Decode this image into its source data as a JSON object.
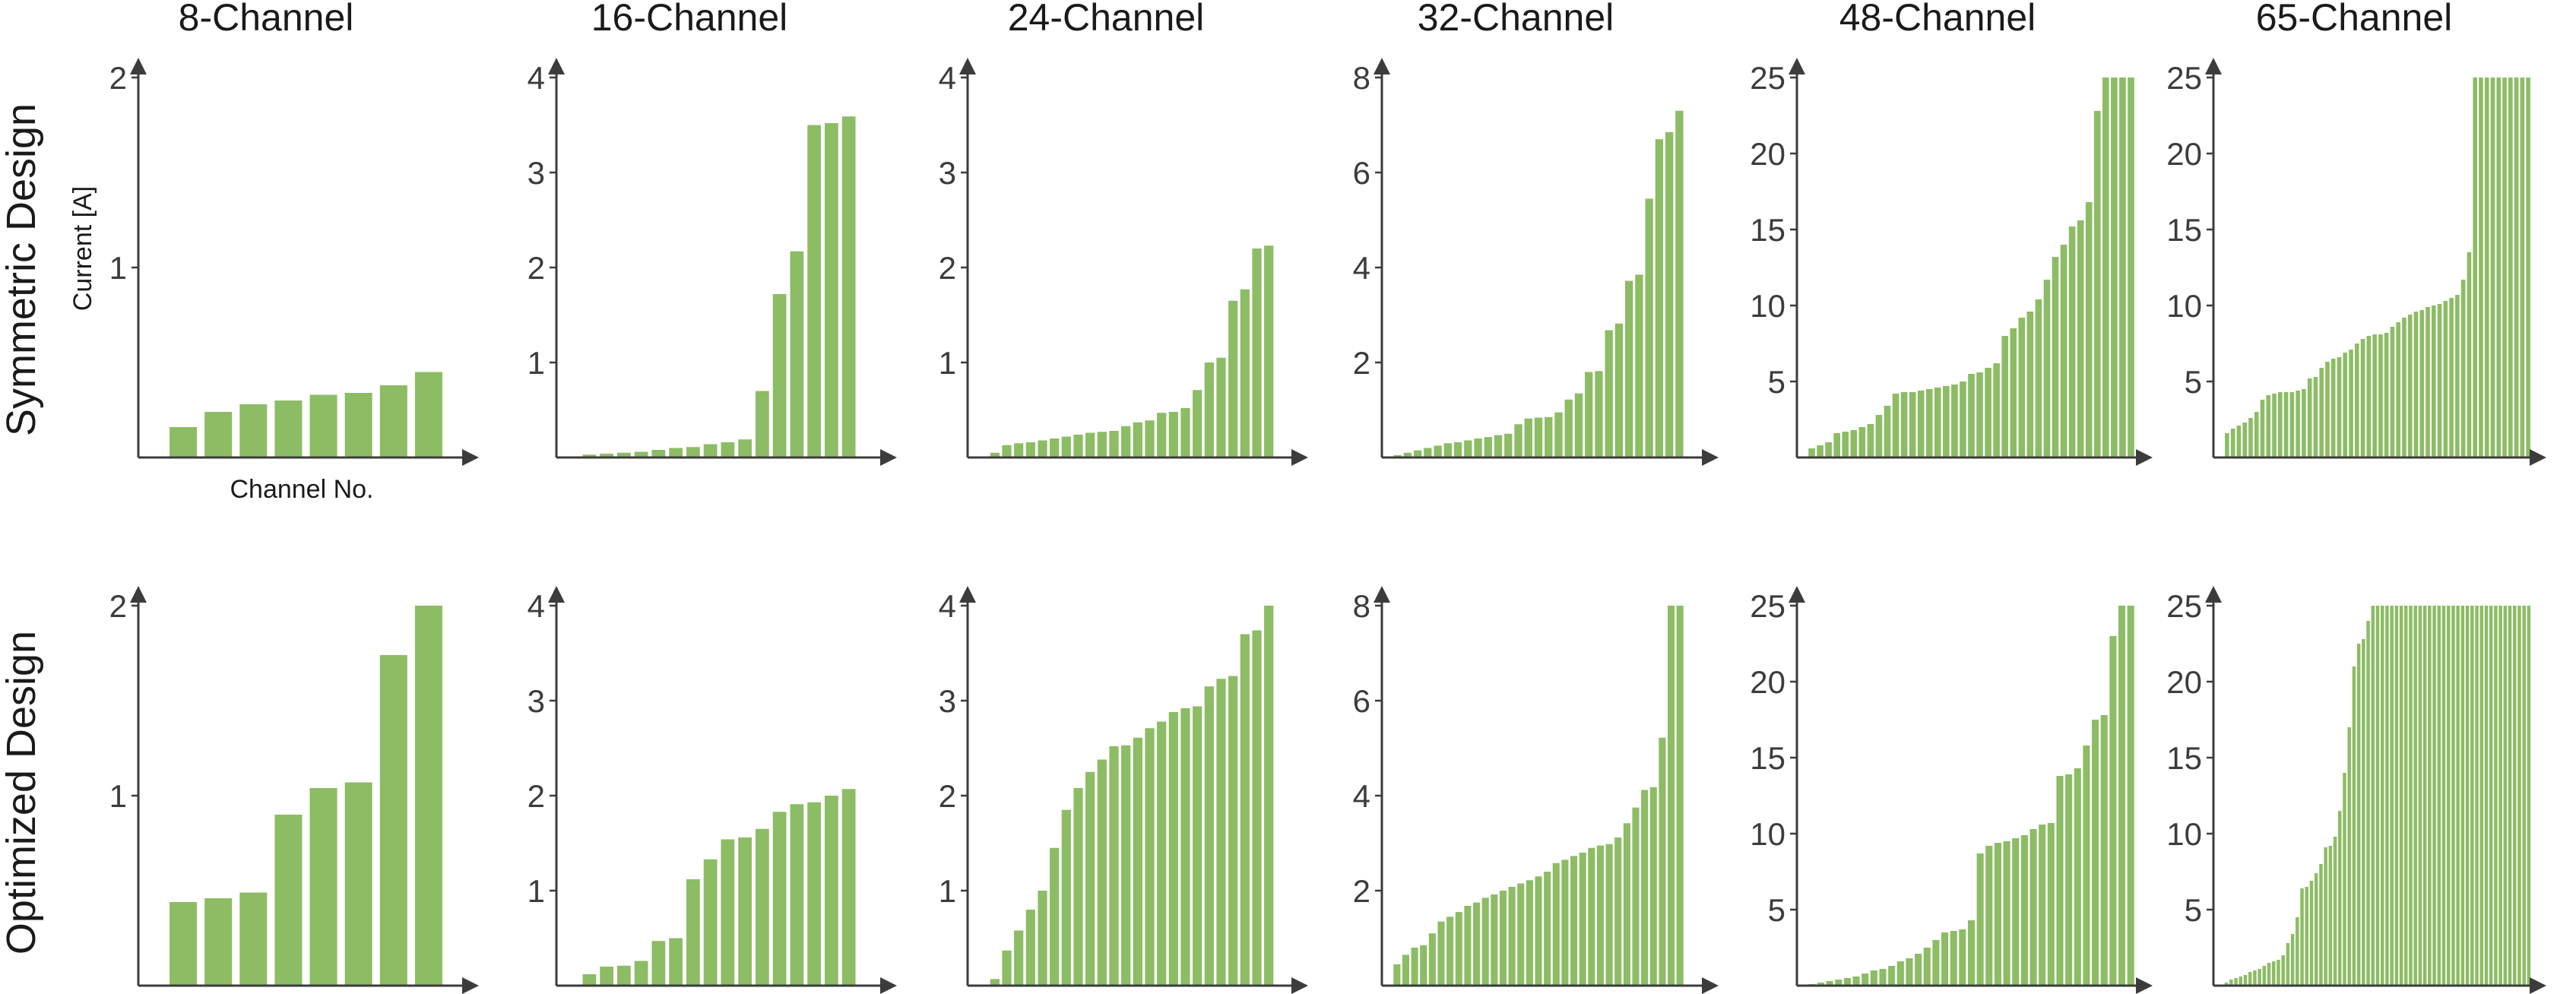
{
  "column_titles": [
    "8-Channel",
    "16-Channel",
    "24-Channel",
    "32-Channel",
    "48-Channel",
    "65-Channel"
  ],
  "row_titles": [
    "Symmetric Design",
    "Optimized Design"
  ],
  "axis_labels": {
    "ylabel": "Current [A]",
    "xlabel": "Channel No."
  },
  "colors": {
    "bar": "#8cbc64",
    "axis": "#3c3c3c",
    "text": "#1a1a1a"
  },
  "chart_data": [
    {
      "type": "bar",
      "title": "8-Channel",
      "row": "Symmetric Design",
      "ylim": [
        0,
        2
      ],
      "yticks": [
        1,
        2
      ],
      "ylabel": "Current [A]",
      "xlabel": "Channel No.",
      "values": [
        0.16,
        0.24,
        0.28,
        0.3,
        0.33,
        0.34,
        0.38,
        0.45
      ]
    },
    {
      "type": "bar",
      "title": "16-Channel",
      "row": "Symmetric Design",
      "ylim": [
        0,
        4
      ],
      "yticks": [
        1,
        2,
        3,
        4
      ],
      "values": [
        0.03,
        0.04,
        0.05,
        0.06,
        0.08,
        0.1,
        0.11,
        0.14,
        0.16,
        0.19,
        0.7,
        1.72,
        2.17,
        3.5,
        3.52,
        3.59
      ]
    },
    {
      "type": "bar",
      "title": "24-Channel",
      "row": "Symmetric Design",
      "ylim": [
        0,
        4
      ],
      "yticks": [
        1,
        2,
        3,
        4
      ],
      "values": [
        0.05,
        0.13,
        0.15,
        0.16,
        0.18,
        0.2,
        0.22,
        0.24,
        0.26,
        0.27,
        0.28,
        0.33,
        0.37,
        0.39,
        0.47,
        0.48,
        0.52,
        0.71,
        1.0,
        1.05,
        1.65,
        1.77,
        2.2,
        2.23
      ]
    },
    {
      "type": "bar",
      "title": "32-Channel",
      "row": "Symmetric Design",
      "ylim": [
        0,
        8
      ],
      "yticks": [
        2,
        4,
        6,
        8
      ],
      "values": [
        0.05,
        0.1,
        0.15,
        0.2,
        0.25,
        0.3,
        0.32,
        0.36,
        0.4,
        0.43,
        0.47,
        0.5,
        0.7,
        0.82,
        0.84,
        0.85,
        0.95,
        1.22,
        1.35,
        1.8,
        1.82,
        2.68,
        2.82,
        3.72,
        3.85,
        5.45,
        6.7,
        6.85,
        7.3
      ]
    },
    {
      "type": "bar",
      "title": "48-Channel",
      "row": "Symmetric Design",
      "ylim": [
        0,
        25
      ],
      "yticks": [
        5,
        10,
        15,
        20,
        25
      ],
      "values": [
        0.6,
        0.8,
        1.0,
        1.6,
        1.7,
        1.8,
        2.0,
        2.2,
        2.8,
        3.4,
        4.2,
        4.3,
        4.3,
        4.4,
        4.5,
        4.6,
        4.7,
        4.8,
        5.0,
        5.5,
        5.6,
        5.9,
        6.2,
        8.0,
        8.5,
        9.2,
        9.6,
        10.4,
        11.7,
        13.2,
        14.0,
        15.2,
        15.6,
        16.8,
        22.8,
        25.0,
        25.0,
        25.0,
        25.0
      ]
    },
    {
      "type": "bar",
      "title": "65-Channel",
      "row": "Symmetric Design",
      "ylim": [
        0,
        25
      ],
      "yticks": [
        5,
        10,
        15,
        20,
        25
      ],
      "values": [
        1.6,
        1.9,
        2.1,
        2.3,
        2.6,
        3.0,
        3.8,
        4.1,
        4.2,
        4.3,
        4.3,
        4.3,
        4.4,
        4.5,
        5.2,
        5.3,
        5.9,
        6.3,
        6.5,
        6.6,
        6.9,
        7.1,
        7.5,
        7.8,
        8.0,
        8.1,
        8.1,
        8.2,
        8.6,
        8.9,
        9.2,
        9.4,
        9.6,
        9.7,
        9.9,
        10.0,
        10.1,
        10.3,
        10.5,
        10.7,
        11.7,
        13.5,
        25.0,
        25.0,
        25.0,
        25.0,
        25.0,
        25.0,
        25.0,
        25.0,
        25.0,
        25.0
      ]
    },
    {
      "type": "bar",
      "title": "8-Channel",
      "row": "Optimized Design",
      "ylim": [
        0,
        2
      ],
      "yticks": [
        1,
        2
      ],
      "values": [
        0.44,
        0.46,
        0.49,
        0.9,
        1.04,
        1.07,
        1.74,
        2.0
      ]
    },
    {
      "type": "bar",
      "title": "16-Channel",
      "row": "Optimized Design",
      "ylim": [
        0,
        4
      ],
      "yticks": [
        1,
        2,
        3,
        4
      ],
      "values": [
        0.12,
        0.2,
        0.21,
        0.26,
        0.47,
        0.5,
        1.12,
        1.33,
        1.54,
        1.56,
        1.65,
        1.83,
        1.91,
        1.93,
        2.0,
        2.07
      ]
    },
    {
      "type": "bar",
      "title": "24-Channel",
      "row": "Optimized Design",
      "ylim": [
        0,
        4
      ],
      "yticks": [
        1,
        2,
        3,
        4
      ],
      "values": [
        0.07,
        0.37,
        0.58,
        0.8,
        1.0,
        1.45,
        1.85,
        2.08,
        2.25,
        2.38,
        2.52,
        2.53,
        2.61,
        2.71,
        2.78,
        2.88,
        2.92,
        2.94,
        3.15,
        3.23,
        3.26,
        3.7,
        3.74,
        4.0
      ]
    },
    {
      "type": "bar",
      "title": "32-Channel",
      "row": "Optimized Design",
      "ylim": [
        0,
        8
      ],
      "yticks": [
        2,
        4,
        6,
        8
      ],
      "values": [
        0.45,
        0.65,
        0.8,
        0.85,
        1.1,
        1.35,
        1.45,
        1.55,
        1.68,
        1.75,
        1.85,
        1.92,
        2.0,
        2.08,
        2.15,
        2.22,
        2.3,
        2.4,
        2.58,
        2.65,
        2.73,
        2.8,
        2.9,
        2.95,
        2.98,
        3.12,
        3.42,
        3.75,
        4.12,
        4.18,
        5.22,
        8.0,
        8.0
      ]
    },
    {
      "type": "bar",
      "title": "48-Channel",
      "row": "Optimized Design",
      "ylim": [
        0,
        25
      ],
      "yticks": [
        5,
        10,
        15,
        20,
        25
      ],
      "values": [
        0.1,
        0.2,
        0.3,
        0.4,
        0.5,
        0.6,
        0.8,
        1.0,
        1.1,
        1.3,
        1.6,
        1.8,
        2.1,
        2.5,
        3.0,
        3.5,
        3.6,
        3.7,
        4.3,
        8.7,
        9.2,
        9.4,
        9.5,
        9.7,
        9.9,
        10.3,
        10.6,
        10.7,
        13.8,
        13.9,
        14.3,
        15.8,
        17.5,
        17.8,
        23.0,
        25.0,
        25.0
      ]
    },
    {
      "type": "bar",
      "title": "65-Channel",
      "row": "Optimized Design",
      "ylim": [
        0,
        25
      ],
      "yticks": [
        5,
        10,
        15,
        20,
        25
      ],
      "values": [
        0.2,
        0.4,
        0.5,
        0.6,
        0.7,
        0.9,
        1.0,
        1.1,
        1.3,
        1.5,
        1.6,
        1.7,
        2.0,
        2.8,
        3.4,
        4.5,
        6.4,
        6.5,
        6.9,
        7.4,
        8.0,
        9.1,
        9.2,
        9.8,
        11.5,
        14.0,
        17.0,
        21.0,
        22.5,
        22.8,
        24.0,
        25.0,
        25.0,
        25.0,
        25.0,
        25.0,
        25.0,
        25.0,
        25.0,
        25.0,
        25.0,
        25.0,
        25.0,
        25.0,
        25.0,
        25.0,
        25.0,
        25.0,
        25.0,
        25.0,
        25.0,
        25.0,
        25.0,
        25.0,
        25.0,
        25.0,
        25.0,
        25.0,
        25.0,
        25.0,
        25.0,
        25.0,
        25.0,
        25.0,
        25.0
      ]
    }
  ]
}
